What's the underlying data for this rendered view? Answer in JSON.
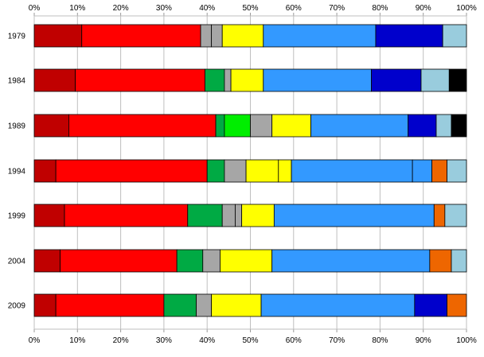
{
  "chart_data": {
    "type": "bar",
    "orientation": "horizontal",
    "stacked": true,
    "xlim": [
      0,
      100
    ],
    "x_ticks": [
      "0%",
      "10%",
      "20%",
      "30%",
      "40%",
      "50%",
      "60%",
      "70%",
      "80%",
      "90%",
      "100%"
    ],
    "grid": true,
    "categories": [
      "1979",
      "1984",
      "1989",
      "1994",
      "1999",
      "2004",
      "2009"
    ],
    "segment_colors": [
      "#c00000",
      "#ff0000",
      "#a6a6a6",
      "#a6a6a6",
      "#ffff00",
      "#3399ff",
      "#0000cc",
      "#99ccdd",
      "#000000",
      "#ff0000",
      "#00aa44",
      "#00ee00",
      "#ee6600"
    ],
    "rows": [
      {
        "category": "1979",
        "segments": [
          {
            "value": 11.0,
            "color": "#c00000"
          },
          {
            "value": 27.5,
            "color": "#ff0000"
          },
          {
            "value": 2.5,
            "color": "#a6a6a6"
          },
          {
            "value": 2.5,
            "color": "#a6a6a6"
          },
          {
            "value": 9.5,
            "color": "#ffff00"
          },
          {
            "value": 26.0,
            "color": "#3399ff"
          },
          {
            "value": 15.5,
            "color": "#0000cc"
          },
          {
            "value": 5.5,
            "color": "#99ccdd"
          }
        ]
      },
      {
        "category": "1984",
        "segments": [
          {
            "value": 9.5,
            "color": "#c00000"
          },
          {
            "value": 30.0,
            "color": "#ff0000"
          },
          {
            "value": 4.5,
            "color": "#00aa44"
          },
          {
            "value": 1.5,
            "color": "#a6a6a6"
          },
          {
            "value": 7.5,
            "color": "#ffff00"
          },
          {
            "value": 25.0,
            "color": "#3399ff"
          },
          {
            "value": 11.5,
            "color": "#0000cc"
          },
          {
            "value": 6.5,
            "color": "#99ccdd"
          },
          {
            "value": 4.0,
            "color": "#000000"
          }
        ]
      },
      {
        "category": "1989",
        "segments": [
          {
            "value": 8.0,
            "color": "#c00000"
          },
          {
            "value": 34.0,
            "color": "#ff0000"
          },
          {
            "value": 2.0,
            "color": "#00aa44"
          },
          {
            "value": 6.0,
            "color": "#00ee00"
          },
          {
            "value": 5.0,
            "color": "#a6a6a6"
          },
          {
            "value": 9.0,
            "color": "#ffff00"
          },
          {
            "value": 22.5,
            "color": "#3399ff"
          },
          {
            "value": 6.5,
            "color": "#0000cc"
          },
          {
            "value": 3.5,
            "color": "#99ccdd"
          },
          {
            "value": 3.5,
            "color": "#000000"
          }
        ]
      },
      {
        "category": "1994",
        "segments": [
          {
            "value": 5.0,
            "color": "#c00000"
          },
          {
            "value": 35.0,
            "color": "#ff0000"
          },
          {
            "value": 4.0,
            "color": "#00aa44"
          },
          {
            "value": 5.0,
            "color": "#a6a6a6"
          },
          {
            "value": 7.5,
            "color": "#ffff00"
          },
          {
            "value": 3.0,
            "color": "#ffff00"
          },
          {
            "value": 28.0,
            "color": "#3399ff"
          },
          {
            "value": 4.5,
            "color": "#3399ff"
          },
          {
            "value": 3.5,
            "color": "#ee6600"
          },
          {
            "value": 4.5,
            "color": "#99ccdd"
          }
        ]
      },
      {
        "category": "1999",
        "segments": [
          {
            "value": 7.0,
            "color": "#c00000"
          },
          {
            "value": 28.5,
            "color": "#ff0000"
          },
          {
            "value": 8.0,
            "color": "#00aa44"
          },
          {
            "value": 3.0,
            "color": "#a6a6a6"
          },
          {
            "value": 1.5,
            "color": "#a6a6a6"
          },
          {
            "value": 7.5,
            "color": "#ffff00"
          },
          {
            "value": 37.0,
            "color": "#3399ff"
          },
          {
            "value": 2.5,
            "color": "#ee6600"
          },
          {
            "value": 5.0,
            "color": "#99ccdd"
          }
        ]
      },
      {
        "category": "2004",
        "segments": [
          {
            "value": 6.0,
            "color": "#c00000"
          },
          {
            "value": 27.0,
            "color": "#ff0000"
          },
          {
            "value": 6.0,
            "color": "#00aa44"
          },
          {
            "value": 4.0,
            "color": "#a6a6a6"
          },
          {
            "value": 12.0,
            "color": "#ffff00"
          },
          {
            "value": 36.5,
            "color": "#3399ff"
          },
          {
            "value": 5.0,
            "color": "#ee6600"
          },
          {
            "value": 3.5,
            "color": "#99ccdd"
          }
        ]
      },
      {
        "category": "2009",
        "segments": [
          {
            "value": 5.0,
            "color": "#c00000"
          },
          {
            "value": 25.0,
            "color": "#ff0000"
          },
          {
            "value": 7.5,
            "color": "#00aa44"
          },
          {
            "value": 3.5,
            "color": "#a6a6a6"
          },
          {
            "value": 11.5,
            "color": "#ffff00"
          },
          {
            "value": 35.5,
            "color": "#3399ff"
          },
          {
            "value": 7.5,
            "color": "#0000cc"
          },
          {
            "value": 4.5,
            "color": "#ee6600"
          }
        ]
      }
    ]
  }
}
